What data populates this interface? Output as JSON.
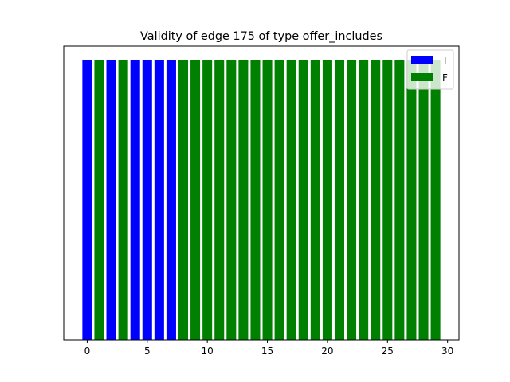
{
  "chart_data": {
    "type": "bar",
    "title": "Validity of edge 175 of type offer_includes",
    "xlabel": "",
    "ylabel": "",
    "x": [
      0,
      1,
      2,
      3,
      4,
      5,
      6,
      7,
      8,
      9,
      10,
      11,
      12,
      13,
      14,
      15,
      16,
      17,
      18,
      19,
      20,
      21,
      22,
      23,
      24,
      25,
      26,
      27,
      28,
      29
    ],
    "values": [
      1,
      1,
      1,
      1,
      1,
      1,
      1,
      1,
      1,
      1,
      1,
      1,
      1,
      1,
      1,
      1,
      1,
      1,
      1,
      1,
      1,
      1,
      1,
      1,
      1,
      1,
      1,
      1,
      1,
      1
    ],
    "validity": [
      "T",
      "F",
      "T",
      "F",
      "T",
      "T",
      "T",
      "T",
      "F",
      "F",
      "F",
      "F",
      "F",
      "F",
      "F",
      "F",
      "F",
      "F",
      "F",
      "F",
      "F",
      "F",
      "F",
      "F",
      "F",
      "F",
      "F",
      "F",
      "F",
      "F"
    ],
    "xlim": [
      -1.95,
      30.95
    ],
    "ylim": [
      0,
      1.05
    ],
    "xticks": [
      0,
      5,
      10,
      15,
      20,
      25,
      30
    ],
    "y_ticks_visible": false,
    "grid": false,
    "legend_position": "top-right",
    "series": [
      {
        "name": "T",
        "color": "#0000ff"
      },
      {
        "name": "F",
        "color": "#008000"
      }
    ]
  }
}
